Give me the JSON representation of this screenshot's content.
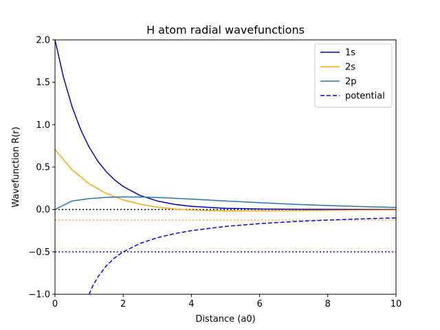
{
  "chart_data": {
    "type": "line",
    "title": "H atom radial wavefunctions",
    "xlabel": "Distance (a0)",
    "ylabel": "Wavefunction R(r)",
    "xlim": [
      0,
      10
    ],
    "ylim": [
      -1.0,
      2.0
    ],
    "x_ticks": [
      "0",
      "2",
      "4",
      "6",
      "8",
      "10"
    ],
    "y_ticks": [
      "−1.0",
      "−0.5",
      "0.0",
      "0.5",
      "1.0",
      "1.5",
      "2.0"
    ],
    "grid": false,
    "legend_position": "upper right",
    "series": [
      {
        "name": "1s",
        "color": "#0000cc",
        "style": "solid",
        "x": [
          0,
          0.25,
          0.5,
          0.75,
          1,
          1.25,
          1.5,
          1.75,
          2,
          2.5,
          3,
          3.5,
          4,
          5,
          6,
          7,
          8,
          9,
          10
        ],
        "y": [
          2.0,
          1.558,
          1.213,
          0.945,
          0.736,
          0.573,
          0.446,
          0.348,
          0.271,
          0.164,
          0.1,
          0.06,
          0.037,
          0.013,
          0.005,
          0.002,
          0.001,
          0.0,
          0.0
        ]
      },
      {
        "name": "2s",
        "color": "#ffa500",
        "style": "solid",
        "x": [
          0,
          0.5,
          1,
          1.5,
          2,
          2.5,
          3,
          3.5,
          4,
          4.5,
          5,
          6,
          7,
          8,
          9,
          10
        ],
        "y": [
          0.707,
          0.468,
          0.303,
          0.189,
          0.113,
          0.061,
          0.027,
          0.006,
          -0.007,
          -0.013,
          -0.017,
          -0.017,
          -0.014,
          -0.011,
          -0.008,
          -0.006
        ]
      },
      {
        "name": "2p",
        "color": "#1f77b4",
        "style": "solid",
        "x": [
          0,
          0.5,
          1,
          1.5,
          2,
          2.5,
          3,
          3.5,
          4,
          5,
          6,
          7,
          8,
          9,
          10
        ],
        "y": [
          0.0,
          0.1,
          0.128,
          0.142,
          0.148,
          0.146,
          0.141,
          0.132,
          0.122,
          0.1,
          0.08,
          0.061,
          0.046,
          0.034,
          0.024
        ]
      },
      {
        "name": "potential",
        "color": "#0000ff",
        "style": "dashed",
        "x": [
          1,
          1.1,
          1.25,
          1.5,
          1.75,
          2,
          2.5,
          3,
          3.5,
          4,
          5,
          6,
          7,
          8,
          9,
          10
        ],
        "y": [
          -1.0,
          -0.909,
          -0.8,
          -0.667,
          -0.571,
          -0.5,
          -0.4,
          -0.333,
          -0.286,
          -0.25,
          -0.2,
          -0.167,
          -0.143,
          -0.125,
          -0.111,
          -0.1
        ]
      }
    ],
    "reference_lines": [
      {
        "y": 0.0,
        "color": "#000000",
        "style": "dotted"
      },
      {
        "y": -0.125,
        "color": "#ffa500",
        "style": "dotted"
      },
      {
        "y": -0.5,
        "color": "#0000ff",
        "style": "dotted"
      }
    ]
  }
}
